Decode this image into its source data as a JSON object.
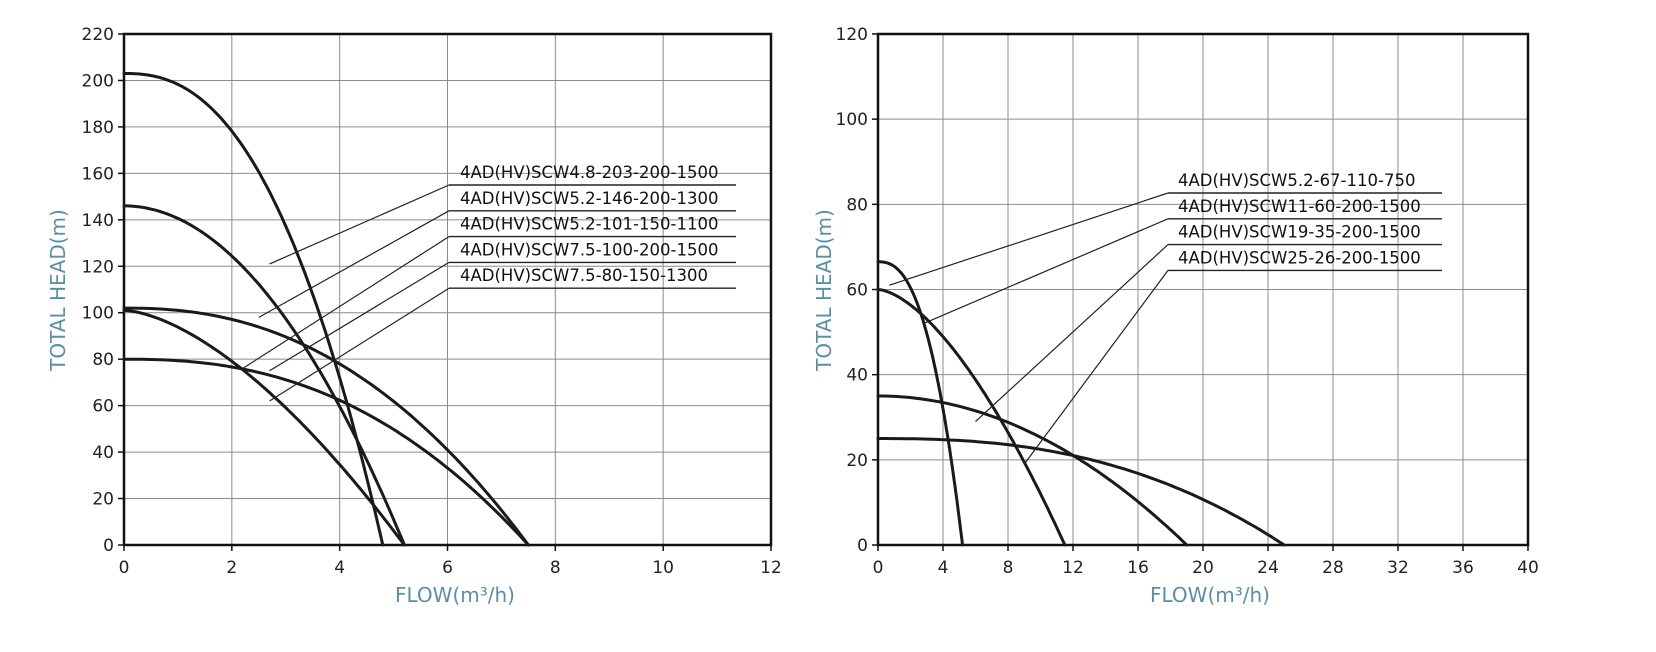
{
  "chart_data": [
    {
      "type": "line",
      "title": "",
      "xlabel": "FLOW(m³/h)",
      "ylabel": "TOTAL HEAD(m)",
      "xlim": [
        0,
        12
      ],
      "ylim": [
        0,
        220
      ],
      "xticks": [
        0,
        2,
        4,
        6,
        8,
        10,
        12
      ],
      "yticks": [
        0,
        20,
        40,
        60,
        80,
        100,
        120,
        140,
        160,
        180,
        200,
        220
      ],
      "grid": true,
      "series": [
        {
          "name": "4AD(HV)SCW4.8-203-200-1500",
          "shutoff_head": 203,
          "max_flow": 4.8,
          "exponent": 2.4,
          "leader_at": [
            2.7,
            121
          ]
        },
        {
          "name": "4AD(HV)SCW5.2-146-200-1300",
          "shutoff_head": 146,
          "max_flow": 5.2,
          "exponent": 2.0,
          "leader_at": [
            2.5,
            98
          ]
        },
        {
          "name": "4AD(HV)SCW5.2-101-150-1100",
          "shutoff_head": 101,
          "max_flow": 5.2,
          "exponent": 1.6,
          "leader_at": [
            2.2,
            76
          ]
        },
        {
          "name": "4AD(HV)SCW7.5-100-200-1500",
          "shutoff_head": 102,
          "max_flow": 7.5,
          "exponent": 2.3,
          "leader_at": [
            2.7,
            75
          ]
        },
        {
          "name": "4AD(HV)SCW7.5-80-150-1300",
          "shutoff_head": 80,
          "max_flow": 7.5,
          "exponent": 2.4,
          "leader_at": [
            2.7,
            62
          ]
        }
      ]
    },
    {
      "type": "line",
      "title": "",
      "xlabel": "FLOW(m³/h)",
      "ylabel": "TOTAL HEAD(m)",
      "xlim": [
        0,
        40
      ],
      "ylim": [
        0,
        120
      ],
      "xticks": [
        0,
        4,
        8,
        12,
        16,
        20,
        24,
        28,
        32,
        36,
        40
      ],
      "yticks": [
        0,
        20,
        40,
        60,
        80,
        100,
        120
      ],
      "grid": true,
      "series": [
        {
          "name": "4AD(HV)SCW5.2-67-110-750",
          "shutoff_head": 66.5,
          "max_flow": 5.2,
          "exponent": 2.5,
          "leader_at": [
            0.7,
            61
          ]
        },
        {
          "name": "4AD(HV)SCW11-60-200-1500",
          "shutoff_head": 60,
          "max_flow": 11.5,
          "exponent": 1.6,
          "leader_at": [
            2.8,
            52
          ]
        },
        {
          "name": "4AD(HV)SCW19-35-200-1500",
          "shutoff_head": 35,
          "max_flow": 19,
          "exponent": 2.0,
          "leader_at": [
            6,
            29
          ]
        },
        {
          "name": "4AD(HV)SCW25-26-200-1500",
          "shutoff_head": 25,
          "max_flow": 25,
          "exponent": 2.5,
          "leader_at": [
            9,
            19
          ]
        }
      ]
    }
  ]
}
